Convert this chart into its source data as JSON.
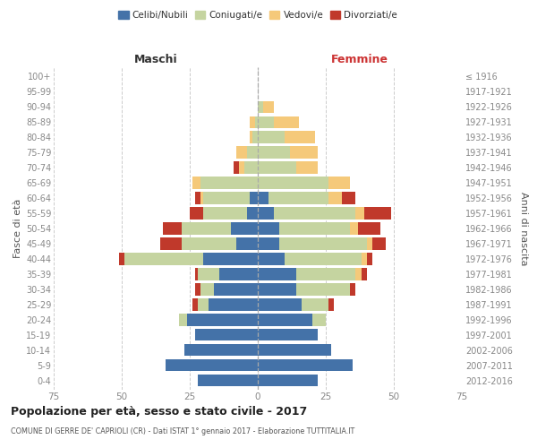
{
  "age_groups": [
    "0-4",
    "5-9",
    "10-14",
    "15-19",
    "20-24",
    "25-29",
    "30-34",
    "35-39",
    "40-44",
    "45-49",
    "50-54",
    "55-59",
    "60-64",
    "65-69",
    "70-74",
    "75-79",
    "80-84",
    "85-89",
    "90-94",
    "95-99",
    "100+"
  ],
  "birth_years": [
    "2012-2016",
    "2007-2011",
    "2002-2006",
    "1997-2001",
    "1992-1996",
    "1987-1991",
    "1982-1986",
    "1977-1981",
    "1972-1976",
    "1967-1971",
    "1962-1966",
    "1957-1961",
    "1952-1956",
    "1947-1951",
    "1942-1946",
    "1937-1941",
    "1932-1936",
    "1927-1931",
    "1922-1926",
    "1917-1921",
    "≤ 1916"
  ],
  "maschi": {
    "celibi": [
      22,
      34,
      27,
      23,
      26,
      18,
      16,
      14,
      20,
      8,
      10,
      4,
      3,
      0,
      0,
      0,
      0,
      0,
      0,
      0,
      0
    ],
    "coniugati": [
      0,
      0,
      0,
      0,
      3,
      4,
      5,
      8,
      29,
      20,
      18,
      16,
      17,
      21,
      5,
      4,
      2,
      1,
      0,
      0,
      0
    ],
    "vedovi": [
      0,
      0,
      0,
      0,
      0,
      0,
      0,
      0,
      0,
      0,
      0,
      0,
      1,
      3,
      2,
      4,
      1,
      2,
      0,
      0,
      0
    ],
    "divorziati": [
      0,
      0,
      0,
      0,
      0,
      2,
      2,
      1,
      2,
      8,
      7,
      5,
      2,
      0,
      2,
      0,
      0,
      0,
      0,
      0,
      0
    ]
  },
  "femmine": {
    "nubili": [
      22,
      35,
      27,
      22,
      20,
      16,
      14,
      14,
      10,
      8,
      8,
      6,
      4,
      0,
      0,
      0,
      0,
      0,
      0,
      0,
      0
    ],
    "coniugate": [
      0,
      0,
      0,
      0,
      5,
      10,
      20,
      22,
      28,
      32,
      26,
      30,
      22,
      26,
      14,
      12,
      10,
      6,
      2,
      0,
      0
    ],
    "vedove": [
      0,
      0,
      0,
      0,
      0,
      0,
      0,
      2,
      2,
      2,
      3,
      3,
      5,
      8,
      8,
      10,
      11,
      9,
      4,
      0,
      0
    ],
    "divorziate": [
      0,
      0,
      0,
      0,
      0,
      2,
      2,
      2,
      2,
      5,
      8,
      10,
      5,
      0,
      0,
      0,
      0,
      0,
      0,
      0,
      0
    ]
  },
  "colors": {
    "celibi": "#4472a8",
    "coniugati": "#c5d4a0",
    "vedovi": "#f5c97a",
    "divorziati": "#c0392b"
  },
  "xlim": 75,
  "title": "Popolazione per età, sesso e stato civile - 2017",
  "subtitle": "COMUNE DI GERRE DE' CAPRIOLI (CR) - Dati ISTAT 1° gennaio 2017 - Elaborazione TUTTITALIA.IT",
  "ylabel_left": "Fasce di età",
  "ylabel_right": "Anni di nascita",
  "xlabel_left": "Maschi",
  "xlabel_right": "Femmine",
  "background_color": "#ffffff",
  "grid_color": "#cccccc",
  "tick_color": "#888888"
}
